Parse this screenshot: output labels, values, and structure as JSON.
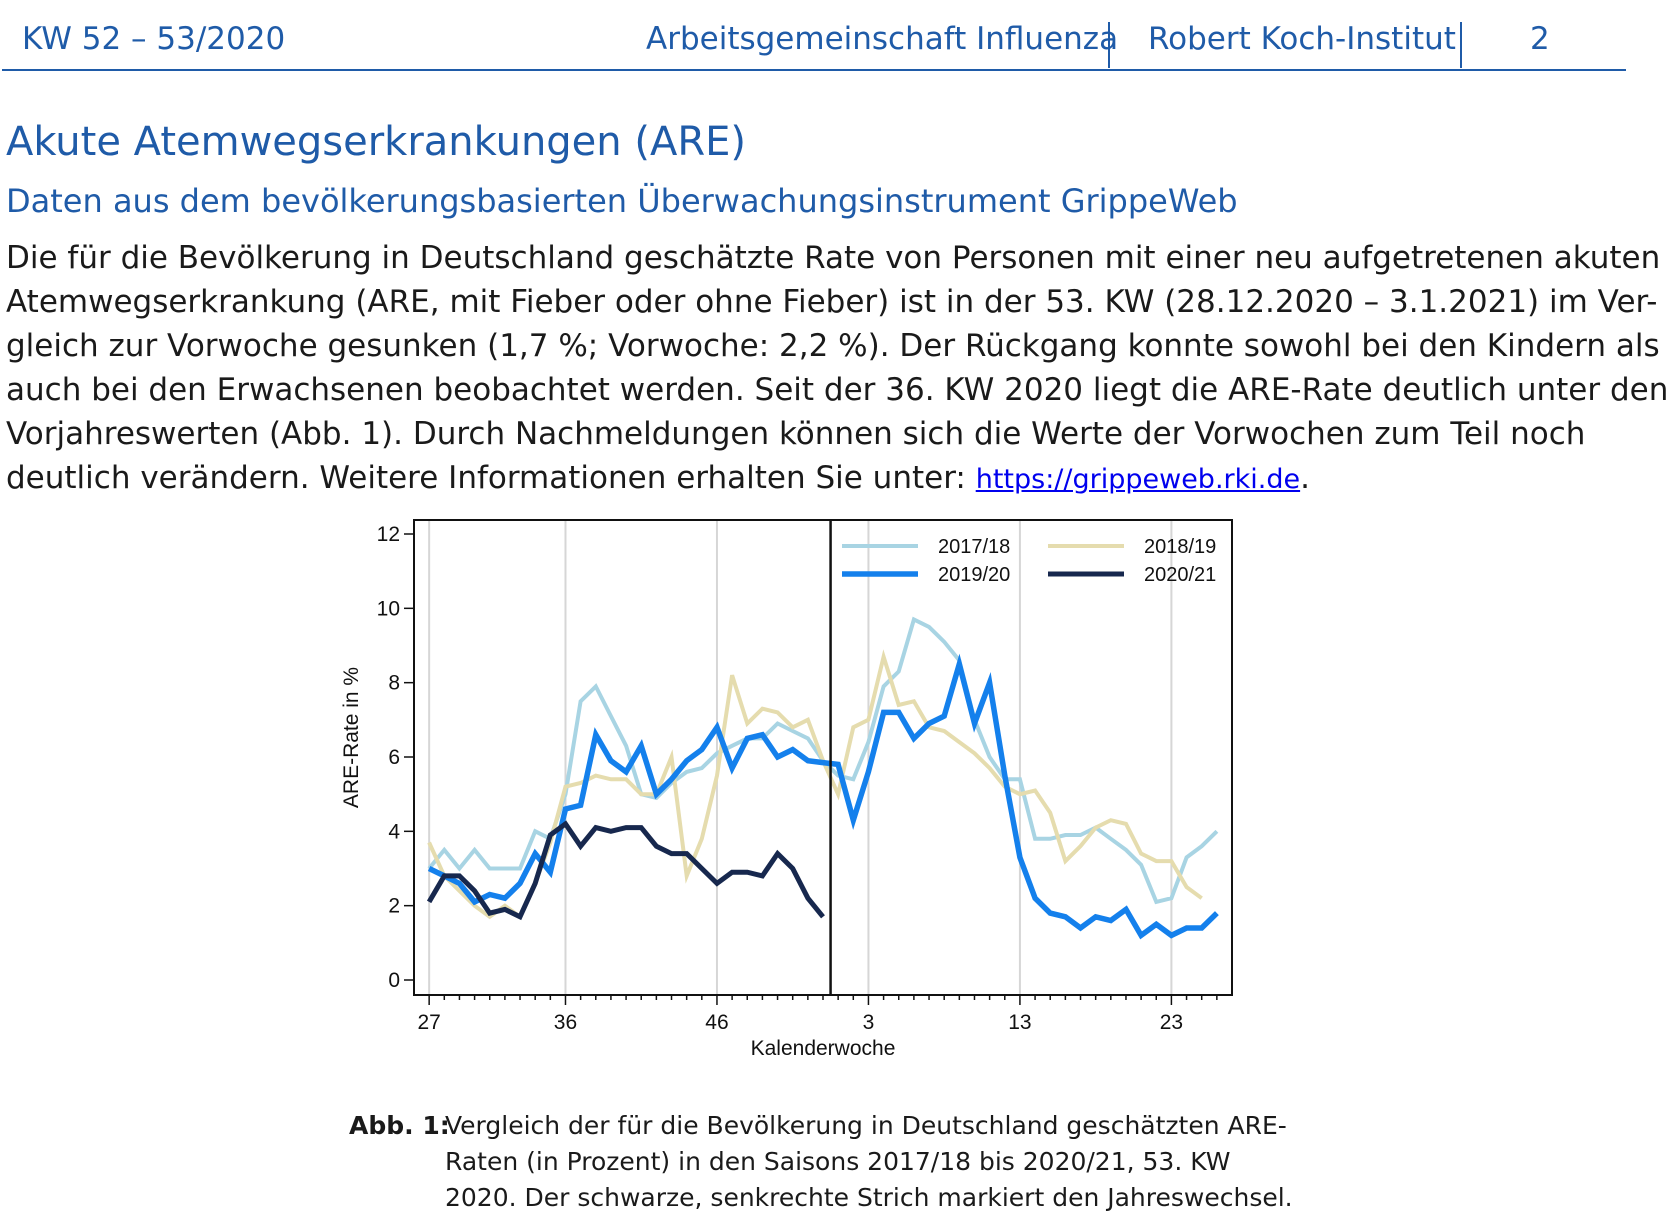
{
  "header": {
    "issue": "KW 52 – 53/2020",
    "group": "Arbeitsgemeinschaft Influenza",
    "institute": "Robert Koch-Institut",
    "page_number": "2",
    "rule_color": "#1f5ba8"
  },
  "section": {
    "title": "Akute Atemwegserkrankungen (ARE)",
    "subtitle": "Daten aus dem bevölkerungsbasierten Überwachungsinstrument GrippeWeb"
  },
  "paragraph": {
    "lines": [
      "Die für die Bevölkerung in Deutschland geschätzte Rate von Personen mit einer neu aufgetretenen akuten",
      "Atemwegserkrankung (ARE, mit Fieber oder ohne Fieber) ist in der 53. KW (28.12.2020 – 3.1.2021) im Ver-",
      "gleich zur Vorwoche gesunken (1,7 %; Vorwoche: 2,2 %). Der Rückgang konnte sowohl bei den Kindern als",
      "auch bei den Erwachsenen beobachtet werden. Seit der 36. KW 2020 liegt die ARE-Rate deutlich unter den",
      "Vorjahreswerten (Abb. 1). Durch Nachmeldungen können sich die Werte der Vorwochen zum Teil noch"
    ],
    "last_line_text": "deutlich verändern. Weitere Informationen erhalten Sie unter: ",
    "link_text": "https://grippeweb.rki.de",
    "last_line_end": "."
  },
  "chart_data": {
    "type": "line",
    "title": "",
    "xlabel": "Kalenderwoche",
    "ylabel": "ARE-Rate in %",
    "ylim": [
      0,
      12
    ],
    "yticks": [
      0,
      2,
      4,
      6,
      8,
      10,
      12
    ],
    "x_tick_labels": [
      "27",
      "36",
      "46",
      "3",
      "13",
      "23"
    ],
    "x_tick_positions": [
      0,
      9,
      19,
      29,
      39,
      49
    ],
    "x_axis_note": "x index = weeks since KW 27 (index 0 = KW 27, index 26 = KW 53, index 27 = KW 1); the year change is marked by the black vertical line at index 26.5",
    "year_change_index": 26.5,
    "x_range": [
      -1,
      53
    ],
    "grid": "vertical gridlines at labeled weeks",
    "legend_position": "top-right",
    "series": [
      {
        "name": "2017/18",
        "color": "#a8d4e3",
        "width": 4,
        "points": [
          [
            0,
            3.0
          ],
          [
            1,
            3.5
          ],
          [
            2,
            3.0
          ],
          [
            3,
            3.5
          ],
          [
            4,
            3.0
          ],
          [
            5,
            3.0
          ],
          [
            6,
            3.0
          ],
          [
            7,
            4.0
          ],
          [
            8,
            3.8
          ],
          [
            9,
            5.0
          ],
          [
            10,
            7.5
          ],
          [
            11,
            7.9
          ],
          [
            12,
            7.1
          ],
          [
            13,
            6.3
          ],
          [
            14,
            5.0
          ],
          [
            15,
            4.9
          ],
          [
            16,
            5.3
          ],
          [
            17,
            5.6
          ],
          [
            18,
            5.7
          ],
          [
            19,
            6.1
          ],
          [
            20,
            6.3
          ],
          [
            21,
            6.5
          ],
          [
            22,
            6.5
          ],
          [
            23,
            6.9
          ],
          [
            24,
            6.7
          ],
          [
            25,
            6.5
          ],
          [
            26,
            5.9
          ],
          [
            27,
            5.5
          ],
          [
            28,
            5.4
          ],
          [
            29,
            6.4
          ],
          [
            30,
            7.9
          ],
          [
            31,
            8.3
          ],
          [
            32,
            9.7
          ],
          [
            33,
            9.5
          ],
          [
            34,
            9.1
          ],
          [
            35,
            8.6
          ],
          [
            36,
            7.0
          ],
          [
            37,
            6.0
          ],
          [
            38,
            5.4
          ],
          [
            39,
            5.4
          ],
          [
            40,
            3.8
          ],
          [
            41,
            3.8
          ],
          [
            42,
            3.9
          ],
          [
            43,
            3.9
          ],
          [
            44,
            4.1
          ],
          [
            45,
            3.8
          ],
          [
            46,
            3.5
          ],
          [
            47,
            3.1
          ],
          [
            48,
            2.1
          ],
          [
            49,
            2.2
          ],
          [
            50,
            3.3
          ],
          [
            51,
            3.6
          ],
          [
            52,
            4.0
          ]
        ]
      },
      {
        "name": "2018/19",
        "color": "#e5dcae",
        "width": 4,
        "points": [
          [
            0,
            3.7
          ],
          [
            1,
            2.8
          ],
          [
            2,
            2.4
          ],
          [
            3,
            2.0
          ],
          [
            4,
            1.7
          ],
          [
            5,
            2.0
          ],
          [
            6,
            1.7
          ],
          [
            7,
            2.6
          ],
          [
            8,
            3.7
          ],
          [
            9,
            5.2
          ],
          [
            10,
            5.3
          ],
          [
            11,
            5.5
          ],
          [
            12,
            5.4
          ],
          [
            13,
            5.4
          ],
          [
            14,
            5.0
          ],
          [
            15,
            5.0
          ],
          [
            16,
            6.0
          ],
          [
            17,
            2.8
          ],
          [
            18,
            3.8
          ],
          [
            19,
            5.5
          ],
          [
            20,
            8.2
          ],
          [
            21,
            6.9
          ],
          [
            22,
            7.3
          ],
          [
            23,
            7.2
          ],
          [
            24,
            6.8
          ],
          [
            25,
            7.0
          ],
          [
            26,
            5.9
          ],
          [
            27,
            5.0
          ],
          [
            28,
            6.8
          ],
          [
            29,
            7.0
          ],
          [
            30,
            8.7
          ],
          [
            31,
            7.4
          ],
          [
            32,
            7.5
          ],
          [
            33,
            6.8
          ],
          [
            34,
            6.7
          ],
          [
            35,
            6.4
          ],
          [
            36,
            6.1
          ],
          [
            37,
            5.7
          ],
          [
            38,
            5.2
          ],
          [
            39,
            5.0
          ],
          [
            40,
            5.1
          ],
          [
            41,
            4.5
          ],
          [
            42,
            3.2
          ],
          [
            43,
            3.6
          ],
          [
            44,
            4.1
          ],
          [
            45,
            4.3
          ],
          [
            46,
            4.2
          ],
          [
            47,
            3.4
          ],
          [
            48,
            3.2
          ],
          [
            49,
            3.2
          ],
          [
            50,
            2.5
          ],
          [
            51,
            2.2
          ]
        ]
      },
      {
        "name": "2019/20",
        "color": "#1480ec",
        "width": 5.5,
        "points": [
          [
            0,
            3.0
          ],
          [
            1,
            2.8
          ],
          [
            2,
            2.6
          ],
          [
            3,
            2.1
          ],
          [
            4,
            2.3
          ],
          [
            5,
            2.2
          ],
          [
            6,
            2.6
          ],
          [
            7,
            3.4
          ],
          [
            8,
            2.9
          ],
          [
            9,
            4.6
          ],
          [
            10,
            4.7
          ],
          [
            11,
            6.6
          ],
          [
            12,
            5.9
          ],
          [
            13,
            5.6
          ],
          [
            14,
            6.3
          ],
          [
            15,
            5.0
          ],
          [
            16,
            5.4
          ],
          [
            17,
            5.9
          ],
          [
            18,
            6.2
          ],
          [
            19,
            6.8
          ],
          [
            20,
            5.7
          ],
          [
            21,
            6.5
          ],
          [
            22,
            6.6
          ],
          [
            23,
            6.0
          ],
          [
            24,
            6.2
          ],
          [
            25,
            5.9
          ],
          [
            26,
            5.85
          ],
          [
            27,
            5.8
          ],
          [
            28,
            4.3
          ],
          [
            29,
            5.6
          ],
          [
            30,
            7.2
          ],
          [
            31,
            7.2
          ],
          [
            32,
            6.5
          ],
          [
            33,
            6.9
          ],
          [
            34,
            7.1
          ],
          [
            35,
            8.5
          ],
          [
            36,
            6.9
          ],
          [
            37,
            8.0
          ],
          [
            38,
            5.5
          ],
          [
            39,
            3.3
          ],
          [
            40,
            2.2
          ],
          [
            41,
            1.8
          ],
          [
            42,
            1.7
          ],
          [
            43,
            1.4
          ],
          [
            44,
            1.7
          ],
          [
            45,
            1.6
          ],
          [
            46,
            1.9
          ],
          [
            47,
            1.2
          ],
          [
            48,
            1.5
          ],
          [
            49,
            1.2
          ],
          [
            50,
            1.4
          ],
          [
            51,
            1.4
          ],
          [
            52,
            1.8
          ]
        ]
      },
      {
        "name": "2020/21",
        "color": "#17284e",
        "width": 5,
        "points": [
          [
            0,
            2.1
          ],
          [
            1,
            2.8
          ],
          [
            2,
            2.8
          ],
          [
            3,
            2.4
          ],
          [
            4,
            1.8
          ],
          [
            5,
            1.9
          ],
          [
            6,
            1.7
          ],
          [
            7,
            2.6
          ],
          [
            8,
            3.9
          ],
          [
            9,
            4.2
          ],
          [
            10,
            3.6
          ],
          [
            11,
            4.1
          ],
          [
            12,
            4.0
          ],
          [
            13,
            4.1
          ],
          [
            14,
            4.1
          ],
          [
            15,
            3.6
          ],
          [
            16,
            3.4
          ],
          [
            17,
            3.4
          ],
          [
            18,
            3.0
          ],
          [
            19,
            2.6
          ],
          [
            20,
            2.9
          ],
          [
            21,
            2.9
          ],
          [
            22,
            2.8
          ],
          [
            23,
            3.4
          ],
          [
            24,
            3.0
          ],
          [
            25,
            2.2
          ],
          [
            26,
            1.7
          ]
        ]
      }
    ]
  },
  "caption": {
    "label": "Abb. 1:",
    "lines": [
      "Vergleich der für die Bevölkerung in Deutschland geschätzten ARE-",
      "Raten (in Prozent) in den Saisons 2017/18 bis 2020/21, 53. KW",
      "2020. Der schwarze, senkrechte Strich markiert den Jahreswechsel."
    ]
  }
}
